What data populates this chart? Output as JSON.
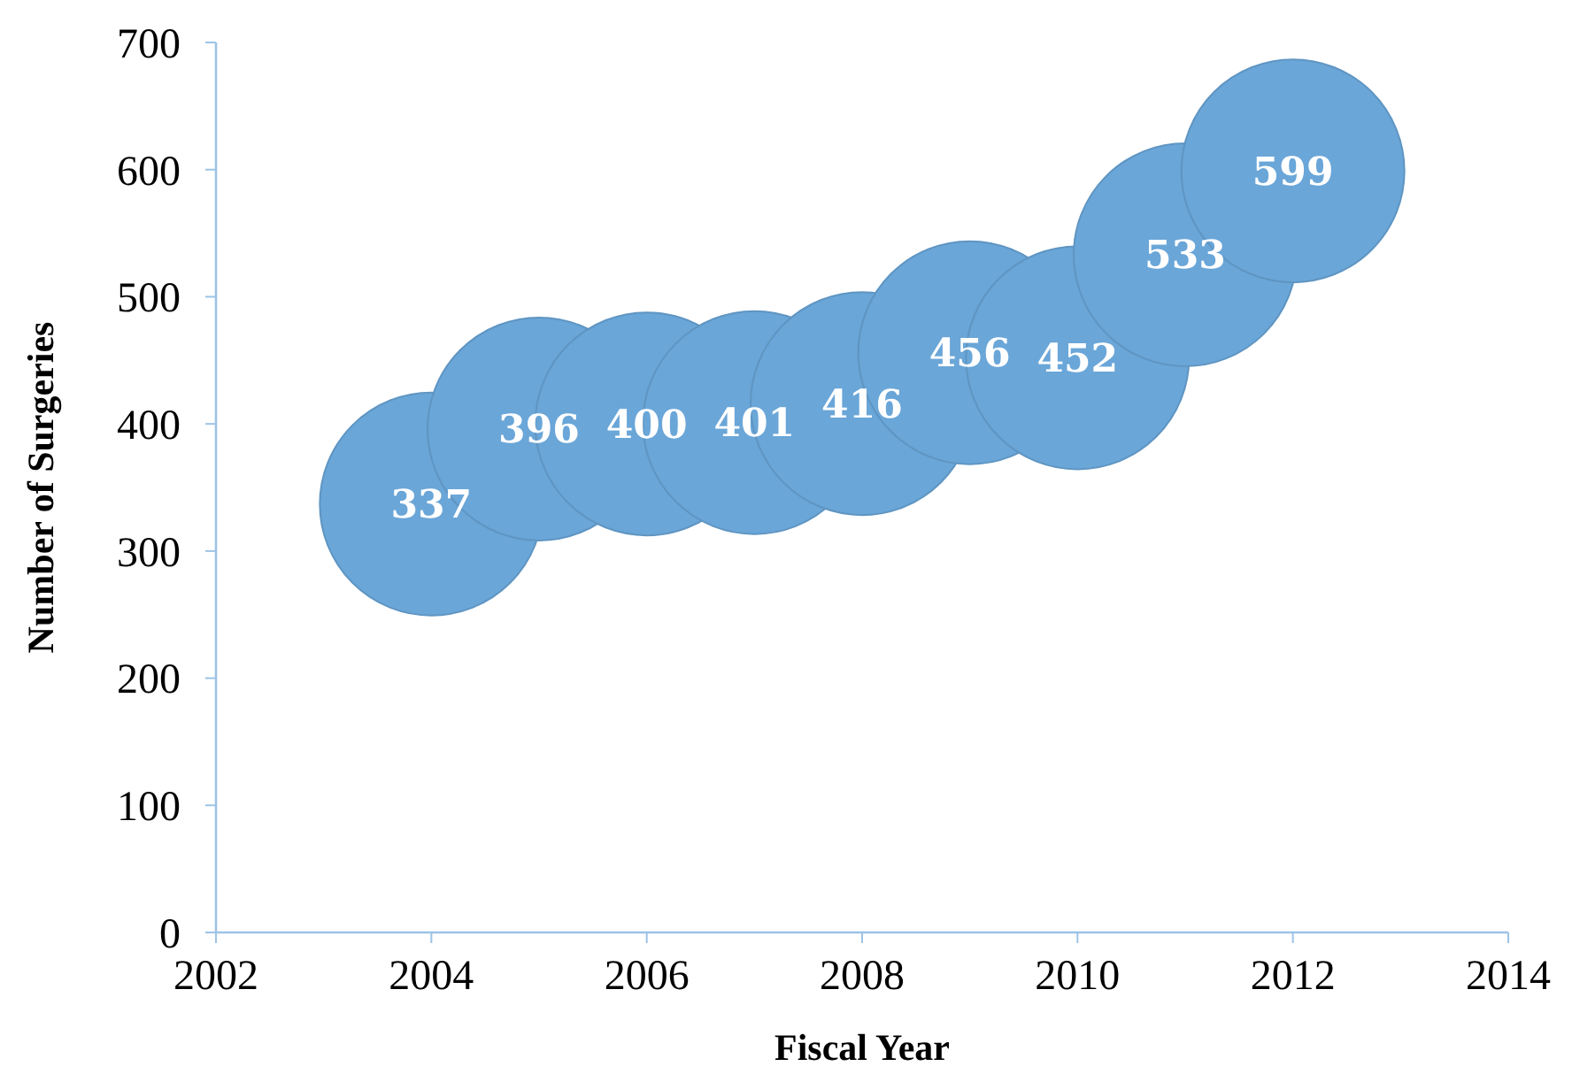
{
  "chart_data": {
    "type": "bubble",
    "xlabel": "Fiscal Year",
    "ylabel": "Number of Surgeries",
    "x": [
      2004,
      2005,
      2006,
      2007,
      2008,
      2009,
      2010,
      2011,
      2012
    ],
    "series": [
      {
        "color": "#6aa6d8",
        "values": [
          337,
          396,
          400,
          401,
          416,
          456,
          452,
          533,
          599
        ],
        "sizes": [
          1,
          1,
          1,
          1,
          1,
          1,
          1,
          1,
          1
        ]
      }
    ],
    "xlim": [
      2002,
      2014
    ],
    "xticks": [
      2002,
      2004,
      2006,
      2008,
      2010,
      2012,
      2014
    ],
    "ylim": [
      0,
      700
    ],
    "yticks": [
      0,
      100,
      200,
      300,
      400,
      500,
      600,
      700
    ],
    "data_labels": true,
    "grid": false
  }
}
